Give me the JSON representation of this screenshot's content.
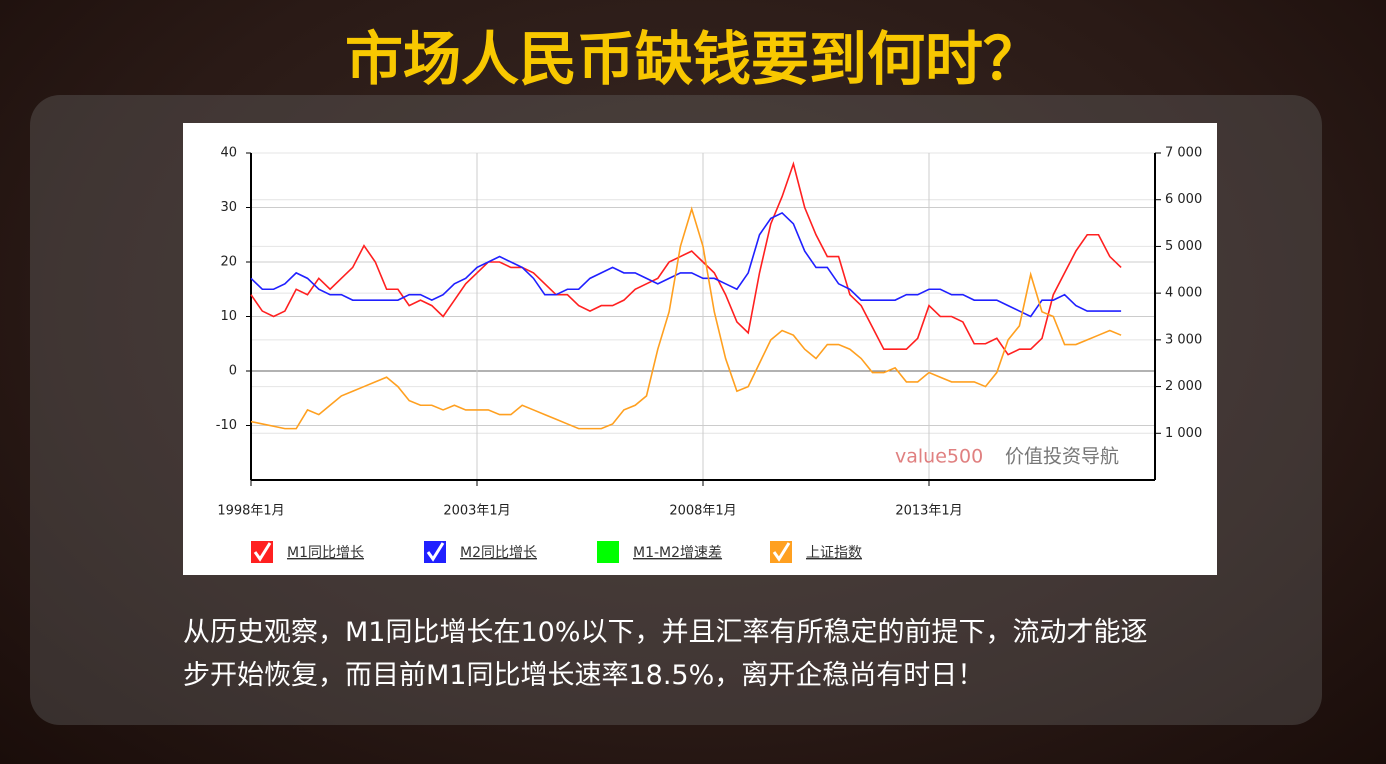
{
  "header": {
    "title": "市场人民币缺钱要到何时？"
  },
  "chart_data": {
    "type": "line",
    "x": [
      1998,
      1998.25,
      1998.5,
      1998.75,
      1999,
      1999.25,
      1999.5,
      1999.75,
      2000,
      2000.25,
      2000.5,
      2000.75,
      2001,
      2001.25,
      2001.5,
      2001.75,
      2002,
      2002.25,
      2002.5,
      2002.75,
      2003,
      2003.25,
      2003.5,
      2003.75,
      2004,
      2004.25,
      2004.5,
      2004.75,
      2005,
      2005.25,
      2005.5,
      2005.75,
      2006,
      2006.25,
      2006.5,
      2006.75,
      2007,
      2007.25,
      2007.5,
      2007.75,
      2008,
      2008.25,
      2008.5,
      2008.75,
      2009,
      2009.25,
      2009.5,
      2009.75,
      2010,
      2010.25,
      2010.5,
      2010.75,
      2011,
      2011.25,
      2011.5,
      2011.75,
      2012,
      2012.25,
      2012.5,
      2012.75,
      2013,
      2013.25,
      2013.5,
      2013.75,
      2014,
      2014.25,
      2014.5,
      2014.75,
      2015,
      2015.25,
      2015.5,
      2015.75,
      2016,
      2016.25,
      2016.5,
      2016.75,
      2017,
      2017.25
    ],
    "series": [
      {
        "name": "M1同比增长",
        "color": "#ff2020",
        "visible": true,
        "values": [
          14,
          11,
          10,
          11,
          15,
          14,
          17,
          15,
          17,
          19,
          23,
          20,
          15,
          15,
          12,
          13,
          12,
          10,
          13,
          16,
          18,
          20,
          20,
          19,
          19,
          18,
          16,
          14,
          14,
          12,
          11,
          12,
          12,
          13,
          15,
          16,
          17,
          20,
          21,
          22,
          20,
          18,
          14,
          9,
          7,
          18,
          27,
          32,
          38,
          30,
          25,
          21,
          21,
          14,
          12,
          8,
          4,
          4,
          4,
          6,
          12,
          10,
          10,
          9,
          5,
          5,
          6,
          3,
          4,
          4,
          6,
          14,
          18,
          22,
          25,
          25,
          21,
          19
        ]
      },
      {
        "name": "M2同比增长",
        "color": "#2020ff",
        "visible": true,
        "values": [
          17,
          15,
          15,
          16,
          18,
          17,
          15,
          14,
          14,
          13,
          13,
          13,
          13,
          13,
          14,
          14,
          13,
          14,
          16,
          17,
          19,
          20,
          21,
          20,
          19,
          17,
          14,
          14,
          15,
          15,
          17,
          18,
          19,
          18,
          18,
          17,
          16,
          17,
          18,
          18,
          17,
          17,
          16,
          15,
          18,
          25,
          28,
          29,
          27,
          22,
          19,
          19,
          16,
          15,
          13,
          13,
          13,
          13,
          14,
          14,
          15,
          15,
          14,
          14,
          13,
          13,
          13,
          12,
          11,
          10,
          13,
          13,
          14,
          12,
          11,
          11,
          11,
          11
        ]
      },
      {
        "name": "M1-M2增速差",
        "color": "#00ff00",
        "visible": false,
        "values": [
          null,
          null,
          null,
          null,
          null,
          null,
          null,
          null,
          null,
          null,
          null,
          null,
          null,
          null,
          null,
          null,
          null,
          null,
          null,
          null,
          null,
          null,
          null,
          null,
          null,
          null,
          null,
          null,
          null,
          null,
          null,
          null,
          null,
          null,
          null,
          null,
          null,
          null,
          null,
          null,
          null,
          null,
          null,
          null,
          null,
          null,
          null,
          null,
          null,
          null,
          null,
          null,
          null,
          null,
          null,
          null,
          null,
          null,
          null,
          null,
          null,
          null,
          null,
          null,
          null,
          null,
          null,
          null,
          null,
          null,
          null,
          null,
          null,
          null,
          null,
          null,
          null,
          null
        ]
      },
      {
        "name": "上证指数",
        "color": "#ffa020",
        "visible": true,
        "axis": "y2",
        "values": [
          1250,
          1200,
          1150,
          1100,
          1100,
          1500,
          1400,
          1600,
          1800,
          1900,
          2000,
          2100,
          2200,
          2000,
          1700,
          1600,
          1600,
          1500,
          1600,
          1500,
          1500,
          1500,
          1400,
          1400,
          1600,
          1500,
          1400,
          1300,
          1200,
          1100,
          1100,
          1100,
          1200,
          1500,
          1600,
          1800,
          2800,
          3600,
          5000,
          5800,
          5000,
          3600,
          2600,
          1900,
          2000,
          2500,
          3000,
          3200,
          3100,
          2800,
          2600,
          2900,
          2900,
          2800,
          2600,
          2300,
          2300,
          2400,
          2100,
          2100,
          2300,
          2200,
          2100,
          2100,
          2100,
          2000,
          2300,
          3000,
          3300,
          4400,
          3600,
          3500,
          2900,
          2900,
          3000,
          3100,
          3200,
          3100
        ]
      }
    ],
    "xlim": [
      1998,
      2018
    ],
    "xticks": [
      {
        "value": 1998,
        "label": "1998年1月"
      },
      {
        "value": 2003,
        "label": "2003年1月"
      },
      {
        "value": 2008,
        "label": "2008年1月"
      },
      {
        "value": 2013,
        "label": "2013年1月"
      }
    ],
    "ylim": [
      -20,
      40
    ],
    "yticks": [
      -10,
      0,
      10,
      20,
      30,
      40
    ],
    "y2lim": [
      0,
      7000
    ],
    "y2ticks": [
      {
        "value": 1000,
        "label": "1 000"
      },
      {
        "value": 2000,
        "label": "2 000"
      },
      {
        "value": 3000,
        "label": "3 000"
      },
      {
        "value": 4000,
        "label": "4 000"
      },
      {
        "value": 5000,
        "label": "5 000"
      },
      {
        "value": 6000,
        "label": "6 000"
      },
      {
        "value": 7000,
        "label": "7 000"
      }
    ],
    "grid": true,
    "watermark": [
      "value500",
      "价值投资导航"
    ]
  },
  "body": {
    "lines": [
      "从历史观察，M1同比增长在10%以下，并且汇率有所稳定的前提下，流动才能逐",
      "步开始恢复，而目前M1同比增长速率18.5%，离开企稳尚有时日！"
    ]
  }
}
